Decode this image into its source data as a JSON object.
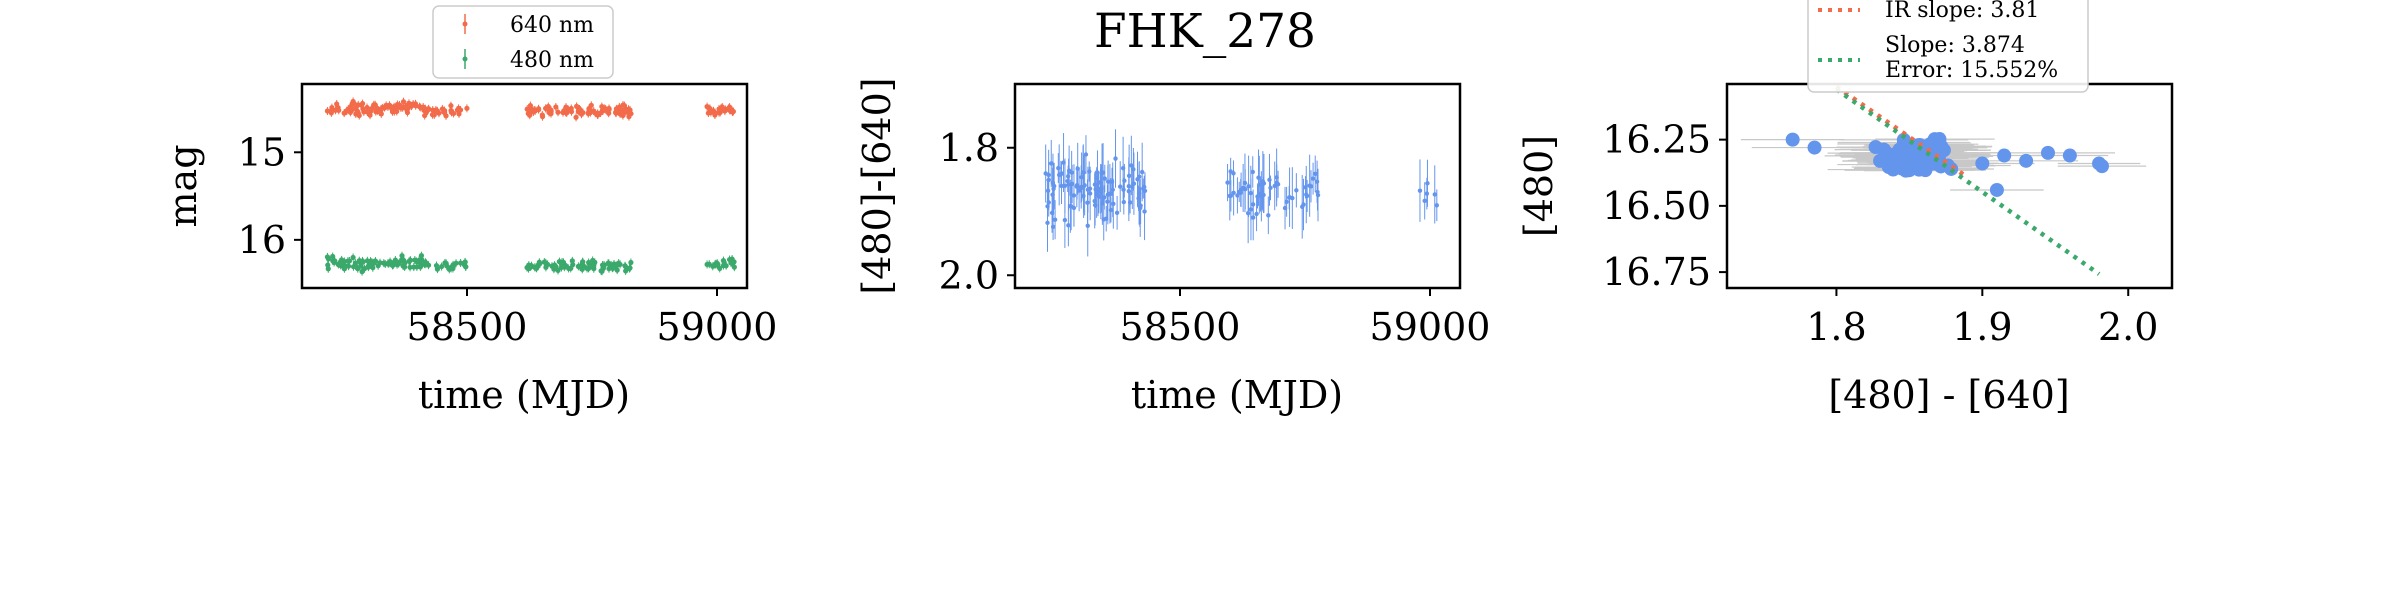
{
  "figure": {
    "title": "FHK_278"
  },
  "colors": {
    "red": "#f26b4a",
    "green": "#3aa96b",
    "blue": "#6495ed",
    "errorbar_gray": "#c8c8c8",
    "frame": "#000000"
  },
  "chart_data": [
    {
      "type": "scatter",
      "title": "",
      "xlabel": "time (MJD)",
      "ylabel": "mag",
      "xlim": [
        58170,
        59060
      ],
      "ylim": [
        16.55,
        14.22
      ],
      "y_inverted": true,
      "xticks": [
        58500,
        59000
      ],
      "xtick_labels": [
        "58500",
        "59000"
      ],
      "yticks": [
        15,
        16
      ],
      "ytick_labels": [
        "15",
        "16"
      ],
      "legend": {
        "position": "top-center",
        "entries": [
          "640 nm",
          "480 nm"
        ]
      },
      "series": [
        {
          "name": "640 nm",
          "color": "red",
          "segments": [
            {
              "x_start": 58220,
              "x_end": 58420,
              "y_center": 14.5,
              "y_spread": 0.07,
              "count": 90
            },
            {
              "x_start": 58420,
              "x_end": 58500,
              "y_center": 14.53,
              "y_spread": 0.06,
              "count": 25
            },
            {
              "x_start": 58620,
              "x_end": 58830,
              "y_center": 14.53,
              "y_spread": 0.06,
              "count": 90
            },
            {
              "x_start": 58980,
              "x_end": 59035,
              "y_center": 14.52,
              "y_spread": 0.05,
              "count": 25
            }
          ]
        },
        {
          "name": "480 nm",
          "color": "green",
          "segments": [
            {
              "x_start": 58220,
              "x_end": 58420,
              "y_center": 16.27,
              "y_spread": 0.07,
              "count": 90
            },
            {
              "x_start": 58420,
              "x_end": 58500,
              "y_center": 16.3,
              "y_spread": 0.06,
              "count": 20
            },
            {
              "x_start": 58620,
              "x_end": 58830,
              "y_center": 16.3,
              "y_spread": 0.06,
              "count": 80
            },
            {
              "x_start": 58980,
              "x_end": 59035,
              "y_center": 16.27,
              "y_spread": 0.05,
              "count": 22
            }
          ]
        }
      ]
    },
    {
      "type": "scatter",
      "title": "FHK_278",
      "xlabel": "time (MJD)",
      "ylabel": "[480]-[640]",
      "xlim": [
        58170,
        59060
      ],
      "ylim": [
        2.02,
        1.7
      ],
      "y_inverted": true,
      "xticks": [
        58500,
        59000
      ],
      "xtick_labels": [
        "58500",
        "59000"
      ],
      "yticks": [
        1.8,
        2.0
      ],
      "ytick_labels": [
        "1.8",
        "2.0"
      ],
      "series": [
        {
          "name": "",
          "color": "blue",
          "errorbars": true,
          "segments": [
            {
              "x_start": 58230,
              "x_end": 58430,
              "y_center": 1.86,
              "y_spread": 0.05,
              "count": 110
            },
            {
              "x_start": 58590,
              "x_end": 58780,
              "y_center": 1.87,
              "y_spread": 0.04,
              "count": 55
            },
            {
              "x_start": 58970,
              "x_end": 59030,
              "y_center": 1.87,
              "y_spread": 0.02,
              "count": 6
            }
          ]
        }
      ]
    },
    {
      "type": "scatter",
      "title": "",
      "xlabel": "[480] - [640]",
      "ylabel": "[480]",
      "xlim": [
        1.725,
        2.03
      ],
      "ylim": [
        16.81,
        16.04
      ],
      "y_inverted": true,
      "xticks": [
        1.8,
        1.9,
        2.0
      ],
      "xtick_labels": [
        "1.8",
        "1.9",
        "2.0"
      ],
      "yticks": [
        16.25,
        16.5,
        16.75
      ],
      "ytick_labels": [
        "16.25",
        "16.50",
        "16.75"
      ],
      "legend": {
        "position": "top-center",
        "entries": [
          "IR slope: 3.81",
          "Slope: 3.874\nError: 15.552%"
        ]
      },
      "points": {
        "color": "blue",
        "cluster": {
          "x_center": 1.855,
          "x_spread": 0.04,
          "y_center": 16.31,
          "y_spread": 0.09,
          "count": 130
        },
        "outliers": [
          {
            "x": 1.77,
            "y": 16.25
          },
          {
            "x": 1.785,
            "y": 16.28
          },
          {
            "x": 1.9,
            "y": 16.34
          },
          {
            "x": 1.915,
            "y": 16.31
          },
          {
            "x": 1.93,
            "y": 16.33
          },
          {
            "x": 1.945,
            "y": 16.3
          },
          {
            "x": 1.96,
            "y": 16.31
          },
          {
            "x": 1.98,
            "y": 16.34
          },
          {
            "x": 1.982,
            "y": 16.35
          },
          {
            "x": 1.91,
            "y": 16.44
          }
        ]
      },
      "lines": [
        {
          "label": "IR slope: 3.81",
          "color": "red",
          "style": "dotted",
          "slope": 3.81,
          "x_range": [
            1.8,
            1.89
          ],
          "y_at_x1": 16.05
        },
        {
          "label": "Slope: 3.874",
          "color": "green",
          "style": "dotted",
          "slope": 3.874,
          "x_range": [
            1.8,
            1.98
          ],
          "y_at_x1": 16.06
        }
      ]
    }
  ]
}
